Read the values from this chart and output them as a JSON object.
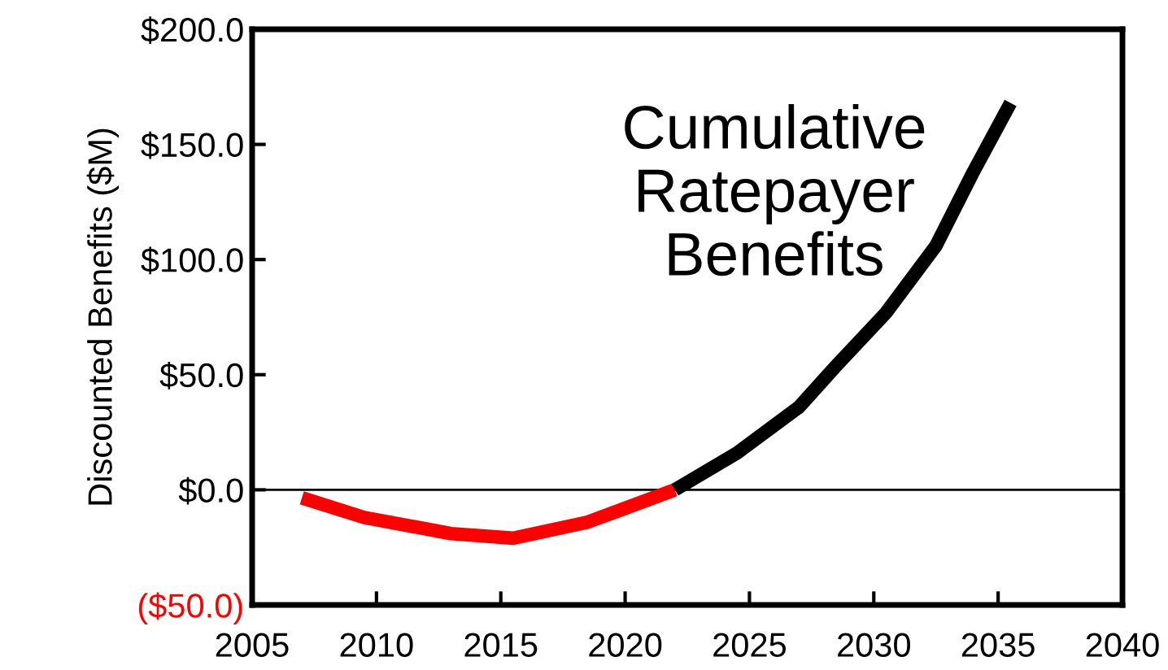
{
  "chart_data": {
    "type": "line",
    "ylabel": "Discounted Benefits ($M)",
    "annotations": [
      "Cumulative\nRatepayer\nBenefits"
    ],
    "series": [
      {
        "color": "#ff0000",
        "x": [
          2007,
          2009.5,
          2013,
          2015.5,
          2018.5,
          2022
        ],
        "values": [
          -3.5,
          -12,
          -19,
          -21,
          -14,
          0
        ]
      },
      {
        "color": "#000000",
        "x": [
          2022,
          2024.5,
          2027,
          2028.5,
          2030.5,
          2032.5,
          2034,
          2035.5
        ],
        "values": [
          0,
          16,
          36,
          54,
          77,
          106,
          138,
          168
        ]
      }
    ],
    "xlim": [
      2005,
      2040
    ],
    "xticks": [
      2005,
      2010,
      2015,
      2020,
      2025,
      2030,
      2035,
      2040
    ],
    "ylim": [
      -50,
      200
    ],
    "yticks": [
      {
        "value": -50,
        "label": "($50.0)"
      },
      {
        "value": 0,
        "label": "$0.0"
      },
      {
        "value": 50,
        "label": "$50.0"
      },
      {
        "value": 100,
        "label": "$100.0"
      },
      {
        "value": 150,
        "label": "$150.0"
      },
      {
        "value": 200,
        "label": "$200.0"
      }
    ],
    "ref_lines": [
      {
        "axis": "y",
        "value": 0,
        "color": "#000000"
      }
    ],
    "grid": false,
    "line_style": "solid",
    "marker": "none"
  }
}
